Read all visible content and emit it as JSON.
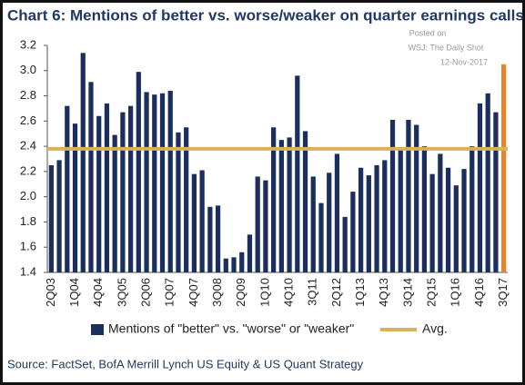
{
  "chart_data": {
    "type": "bar",
    "title": "Chart 6: Mentions of better vs. worse/weaker on quarter earnings calls",
    "annotations": [
      "Posted on",
      "WSJ: The Daily Shot",
      "12-Nov-2017"
    ],
    "source": "Source: FactSet, BofA Merrill Lynch US Equity & US Quant Strategy",
    "categories": [
      "2Q03",
      null,
      null,
      "1Q04",
      null,
      null,
      "4Q04",
      null,
      null,
      "3Q05",
      null,
      null,
      "2Q06",
      null,
      null,
      "1Q07",
      null,
      null,
      "4Q07",
      null,
      null,
      "3Q08",
      null,
      null,
      "2Q09",
      null,
      null,
      "1Q10",
      null,
      null,
      "4Q10",
      null,
      null,
      "3Q11",
      null,
      null,
      "2Q12",
      null,
      null,
      "1Q13",
      null,
      null,
      "4Q13",
      null,
      null,
      "3Q14",
      null,
      null,
      "2Q15",
      null,
      null,
      "1Q16",
      null,
      null,
      "4Q16",
      null,
      null,
      "3Q17"
    ],
    "series": [
      {
        "name": "Mentions of \"better\" vs. \"worse\" or \"weaker\"",
        "color": "#1b2f5e",
        "colors": [
          "#1b2f5e",
          "#1b2f5e",
          "#1b2f5e",
          "#1b2f5e",
          "#1b2f5e",
          "#1b2f5e",
          "#1b2f5e",
          "#1b2f5e",
          "#1b2f5e",
          "#1b2f5e",
          "#1b2f5e",
          "#1b2f5e",
          "#1b2f5e",
          "#1b2f5e",
          "#1b2f5e",
          "#1b2f5e",
          "#1b2f5e",
          "#1b2f5e",
          "#1b2f5e",
          "#1b2f5e",
          "#1b2f5e",
          "#1b2f5e",
          "#1b2f5e",
          "#1b2f5e",
          "#1b2f5e",
          "#1b2f5e",
          "#1b2f5e",
          "#1b2f5e",
          "#1b2f5e",
          "#1b2f5e",
          "#1b2f5e",
          "#1b2f5e",
          "#1b2f5e",
          "#1b2f5e",
          "#1b2f5e",
          "#1b2f5e",
          "#1b2f5e",
          "#1b2f5e",
          "#1b2f5e",
          "#1b2f5e",
          "#1b2f5e",
          "#1b2f5e",
          "#1b2f5e",
          "#1b2f5e",
          "#1b2f5e",
          "#1b2f5e",
          "#1b2f5e",
          "#1b2f5e",
          "#1b2f5e",
          "#1b2f5e",
          "#1b2f5e",
          "#1b2f5e",
          "#1b2f5e",
          "#1b2f5e",
          "#1b2f5e",
          "#1b2f5e",
          "#1b2f5e",
          "#e8842a"
        ],
        "values": [
          2.25,
          2.29,
          2.72,
          2.58,
          3.14,
          2.91,
          2.64,
          2.74,
          2.49,
          2.67,
          2.72,
          2.99,
          2.83,
          2.81,
          2.82,
          2.84,
          2.51,
          2.55,
          2.18,
          2.21,
          1.92,
          1.93,
          1.51,
          1.52,
          1.56,
          1.7,
          2.16,
          2.13,
          2.55,
          2.45,
          2.47,
          2.96,
          2.52,
          2.16,
          1.95,
          2.19,
          2.34,
          1.84,
          2.04,
          2.23,
          2.17,
          2.25,
          2.29,
          2.61,
          2.38,
          2.61,
          2.57,
          2.4,
          2.18,
          2.34,
          2.23,
          2.09,
          2.22,
          2.4,
          2.74,
          2.82,
          2.67,
          3.05
        ]
      },
      {
        "name": "Avg.",
        "color": "#d9b257",
        "type": "hline",
        "value": 2.38
      }
    ],
    "ylim": [
      1.4,
      3.2
    ],
    "yticks": [
      1.4,
      1.6,
      1.8,
      {
        "value": 2,
        "label": "2.0"
      },
      2.2,
      2.4,
      2.6,
      2.8,
      {
        "value": 3,
        "label": "3.0"
      },
      3.2
    ],
    "grid": false
  }
}
